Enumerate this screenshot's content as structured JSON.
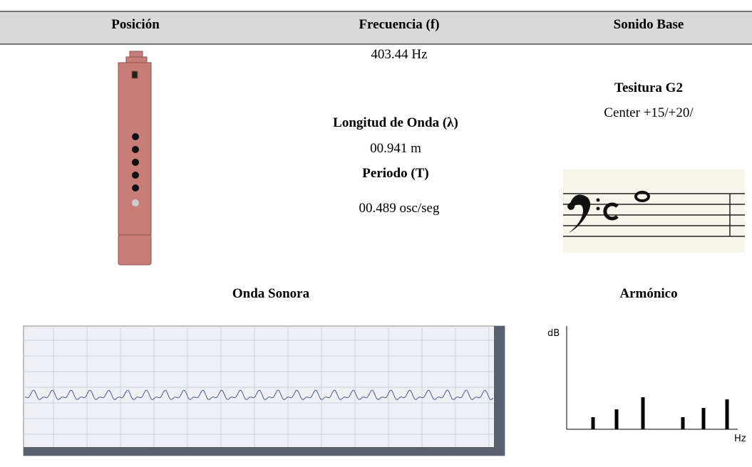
{
  "table": {
    "headers": [
      "Posición",
      "Frecuencia (f)",
      "Sonido Base"
    ],
    "frequency": "403.44 Hz",
    "wavelength_label": "Longitud de Onda (λ)",
    "wavelength": "00.941 m",
    "period_label": "Periodo (T)",
    "period": "00.489 osc/seg",
    "tessitura": "Tesitura G2",
    "tuning": "Center +15/+20/"
  },
  "sections": {
    "wave_title": "Onda Sonora",
    "harmonic_title": "Armónico"
  },
  "chart_data": {
    "type": "bar",
    "y_label": "dB",
    "x_label": "Hz",
    "values": [
      17,
      28,
      45,
      17,
      30,
      42
    ],
    "color": "#000000"
  }
}
